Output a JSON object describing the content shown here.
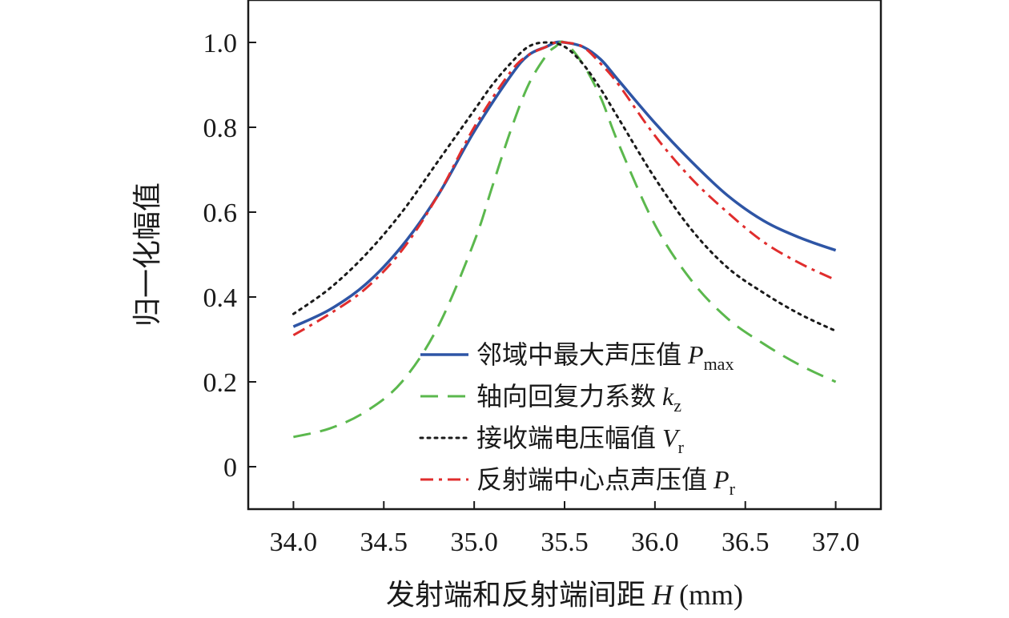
{
  "chart_data": {
    "type": "line",
    "xlabel": "发射端和反射端间距",
    "xlabel_var": "H",
    "xlabel_unit": "(mm)",
    "ylabel": "归一化幅值",
    "xlim": [
      33.75,
      37.25
    ],
    "ylim": [
      -0.1,
      1.1
    ],
    "x_ticks": [
      "34.0",
      "34.5",
      "35.0",
      "35.5",
      "36.0",
      "36.5",
      "37.0"
    ],
    "y_ticks": [
      "0",
      "0.2",
      "0.4",
      "0.6",
      "0.8",
      "1.0"
    ],
    "legend_position": "lower-right",
    "grid": false,
    "series": [
      {
        "name": "邻域中最大声压值",
        "name_var": "P",
        "name_sub": "max",
        "color": "#2e55a5",
        "style": "solid",
        "x": [
          34.0,
          34.2,
          34.4,
          34.6,
          34.8,
          35.0,
          35.2,
          35.3,
          35.4,
          35.45,
          35.5,
          35.6,
          35.7,
          35.8,
          36.0,
          36.2,
          36.4,
          36.6,
          36.8,
          37.0
        ],
        "y": [
          0.33,
          0.37,
          0.43,
          0.52,
          0.64,
          0.79,
          0.92,
          0.97,
          0.99,
          1.0,
          1.0,
          0.99,
          0.96,
          0.91,
          0.81,
          0.72,
          0.64,
          0.58,
          0.54,
          0.51
        ]
      },
      {
        "name": "轴向回复力系数",
        "name_var": "k",
        "name_sub": "z",
        "color": "#5bb84d",
        "style": "dashed",
        "x": [
          34.0,
          34.2,
          34.4,
          34.6,
          34.8,
          35.0,
          35.1,
          35.2,
          35.3,
          35.4,
          35.45,
          35.5,
          35.6,
          35.7,
          35.8,
          36.0,
          36.2,
          36.4,
          36.6,
          36.8,
          37.0
        ],
        "y": [
          0.07,
          0.09,
          0.13,
          0.2,
          0.33,
          0.53,
          0.66,
          0.79,
          0.9,
          0.97,
          0.99,
          1.0,
          0.95,
          0.87,
          0.76,
          0.57,
          0.44,
          0.35,
          0.29,
          0.24,
          0.2
        ]
      },
      {
        "name": "接收端电压幅值",
        "name_var": "V",
        "name_sub": "r",
        "color": "#1a1a1a",
        "style": "dotted",
        "x": [
          34.0,
          34.2,
          34.4,
          34.6,
          34.8,
          35.0,
          35.1,
          35.2,
          35.3,
          35.4,
          35.5,
          35.6,
          35.7,
          35.8,
          36.0,
          36.2,
          36.4,
          36.6,
          36.8,
          37.0
        ],
        "y": [
          0.36,
          0.42,
          0.5,
          0.6,
          0.72,
          0.84,
          0.9,
          0.95,
          0.99,
          1.0,
          0.99,
          0.95,
          0.89,
          0.82,
          0.68,
          0.56,
          0.47,
          0.41,
          0.36,
          0.32
        ]
      },
      {
        "name": "反射端中心点声压值",
        "name_var": "P",
        "name_sub": "r",
        "color": "#e02d2d",
        "style": "dashdot",
        "x": [
          34.0,
          34.2,
          34.4,
          34.6,
          34.8,
          35.0,
          35.2,
          35.3,
          35.4,
          35.45,
          35.5,
          35.6,
          35.7,
          35.8,
          36.0,
          36.2,
          36.4,
          36.6,
          36.8,
          37.0
        ],
        "y": [
          0.31,
          0.36,
          0.42,
          0.51,
          0.64,
          0.8,
          0.93,
          0.97,
          0.99,
          1.0,
          1.0,
          0.99,
          0.95,
          0.9,
          0.78,
          0.68,
          0.6,
          0.53,
          0.48,
          0.44
        ]
      }
    ]
  }
}
